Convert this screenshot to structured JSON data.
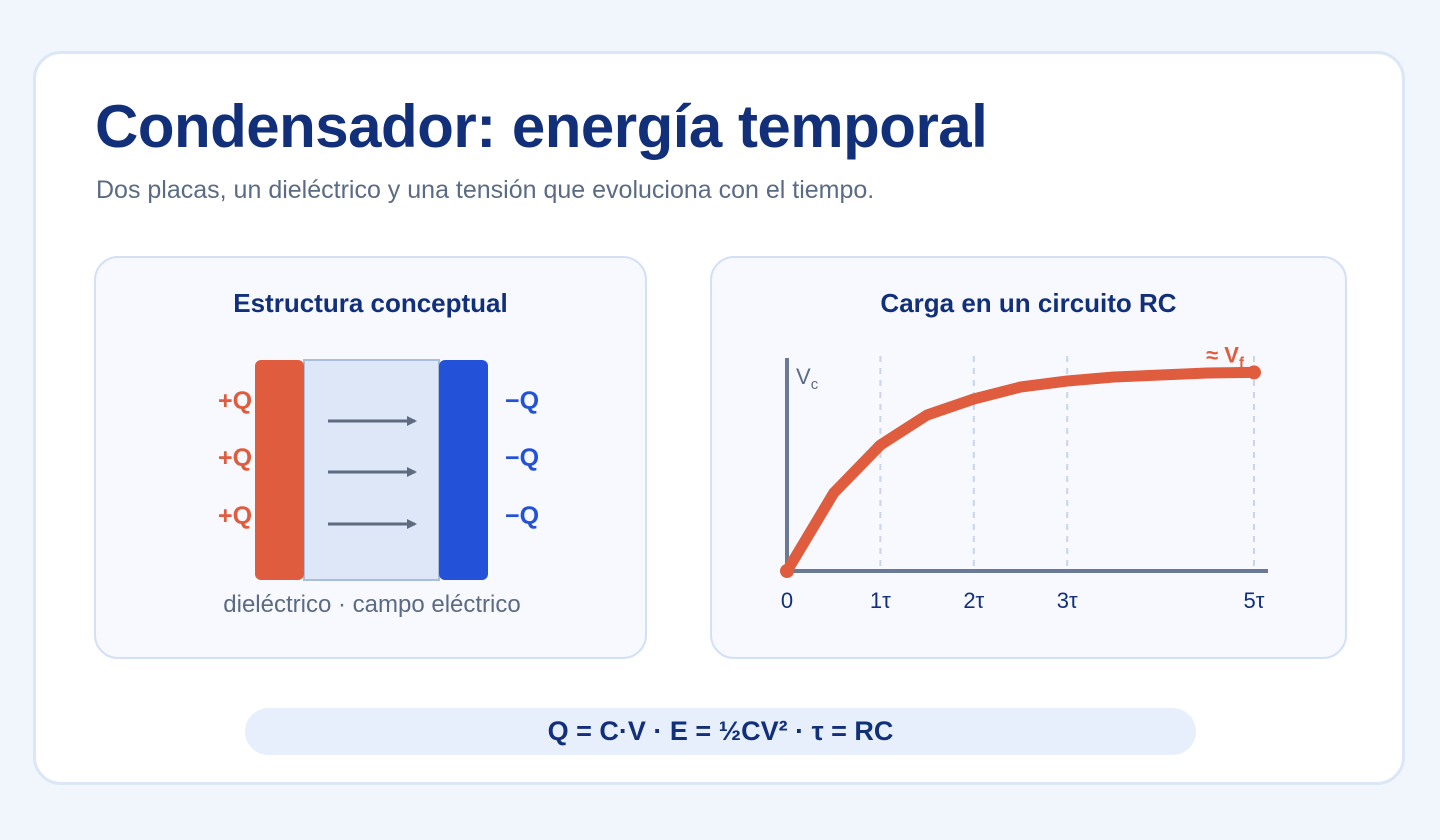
{
  "header": {
    "title": "Condensador: energía temporal",
    "subtitle": "Dos placas, un dieléctrico y una tensión que evoluciona con el tiempo."
  },
  "structure_panel": {
    "title": "Estructura conceptual",
    "positive_labels": [
      "+Q",
      "+Q",
      "+Q"
    ],
    "negative_labels": [
      "−Q",
      "−Q",
      "−Q"
    ],
    "caption": "dieléctrico · campo eléctrico",
    "colors": {
      "positive_plate": "#e05c3e",
      "negative_plate": "#2352d8",
      "dielectric": "#dde7f7",
      "field_arrow": "#5d6a80"
    }
  },
  "chart_panel": {
    "title": "Carga en un circuito RC"
  },
  "chart_data": {
    "type": "line",
    "ylabel": "V",
    "ylabel_sub": "c",
    "end_label": "≈ V",
    "end_label_sub": "f",
    "x_tick_labels": [
      "0",
      "1τ",
      "2τ",
      "3τ",
      "5τ"
    ],
    "x_tick_values": [
      0,
      1,
      2,
      3,
      5
    ],
    "gridlines_at": [
      1,
      2,
      3,
      5
    ],
    "xlim": [
      0,
      5.15
    ],
    "ylim": [
      0,
      1.05
    ],
    "series": [
      {
        "x": [
          0,
          0.5,
          1,
          1.5,
          2,
          2.5,
          3,
          3.5,
          4,
          4.5,
          5
        ],
        "y": [
          0,
          0.39,
          0.63,
          0.78,
          0.86,
          0.92,
          0.95,
          0.97,
          0.98,
          0.99,
          0.993
        ],
        "color": "#e05c3e"
      }
    ],
    "axis_color": "#6b7a94",
    "grid_color": "#c8d5ea"
  },
  "formula": {
    "text": "Q = C·V · E = ½CV² · τ = RC"
  }
}
